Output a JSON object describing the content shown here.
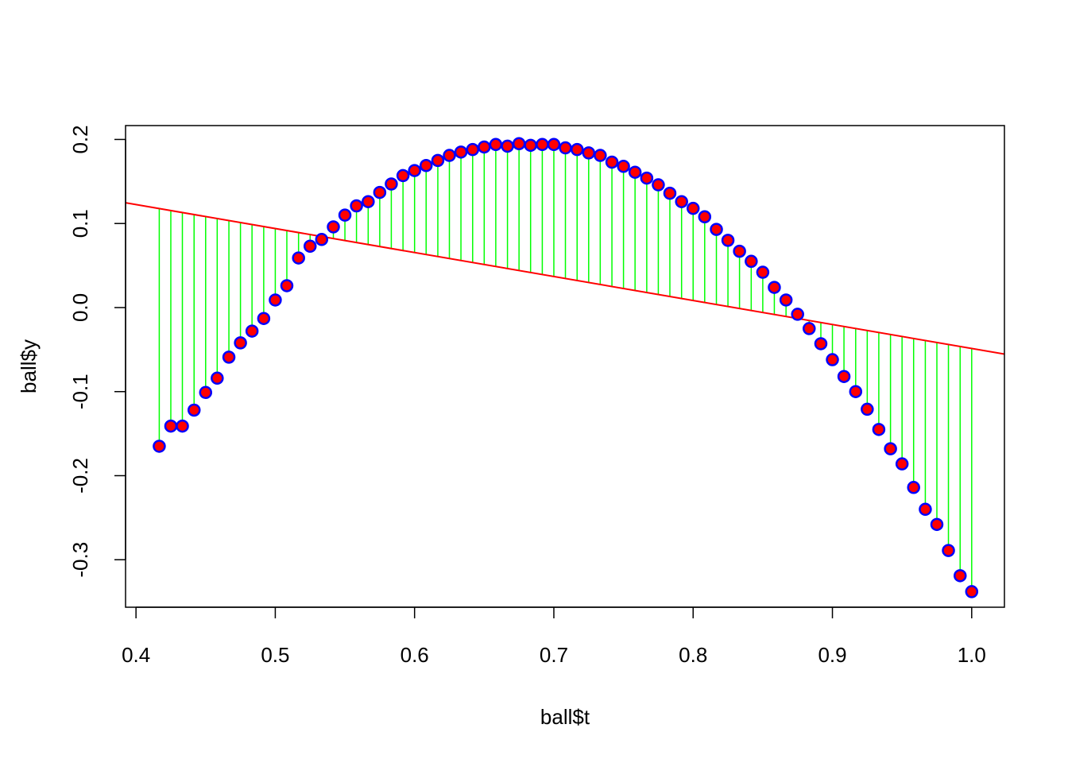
{
  "chart_data": {
    "type": "scatter",
    "title": "",
    "xlabel": "ball$t",
    "ylabel": "ball$y",
    "xlim": [
      0.3925,
      1.0235
    ],
    "ylim": [
      -0.3565,
      0.2165
    ],
    "xticks": [
      0.4,
      0.5,
      0.6,
      0.7,
      0.8,
      0.9,
      1.0
    ],
    "xtick_labels": [
      "0.4",
      "0.5",
      "0.6",
      "0.7",
      "0.8",
      "0.9",
      "1.0"
    ],
    "yticks": [
      0.2,
      0.1,
      0.0,
      -0.1,
      -0.2,
      -0.3
    ],
    "ytick_labels": [
      "0.2",
      "0.1",
      "0.0",
      "-0.1",
      "-0.2",
      "-0.3"
    ],
    "grid": false,
    "legend": "none",
    "points": {
      "x": [
        0.4167,
        0.425,
        0.4333,
        0.4417,
        0.45,
        0.4583,
        0.4667,
        0.475,
        0.4833,
        0.4917,
        0.5,
        0.5083,
        0.5167,
        0.525,
        0.5333,
        0.5417,
        0.55,
        0.5583,
        0.5667,
        0.575,
        0.5833,
        0.5917,
        0.6,
        0.6083,
        0.6167,
        0.625,
        0.6333,
        0.6417,
        0.65,
        0.6583,
        0.6667,
        0.675,
        0.6833,
        0.6917,
        0.7,
        0.7083,
        0.7167,
        0.725,
        0.7333,
        0.7417,
        0.75,
        0.7583,
        0.7667,
        0.775,
        0.7833,
        0.7917,
        0.8,
        0.8083,
        0.8167,
        0.825,
        0.8333,
        0.8417,
        0.85,
        0.8583,
        0.8667,
        0.875,
        0.8833,
        0.8917,
        0.9,
        0.9083,
        0.9167,
        0.925,
        0.9333,
        0.9417,
        0.95,
        0.9583,
        0.9667,
        0.975,
        0.9833,
        0.9917,
        1.0
      ],
      "y": [
        -0.165,
        -0.141,
        -0.141,
        -0.122,
        -0.101,
        -0.084,
        -0.059,
        -0.042,
        -0.028,
        -0.013,
        0.009,
        0.026,
        0.059,
        0.073,
        0.081,
        0.096,
        0.11,
        0.121,
        0.126,
        0.137,
        0.147,
        0.157,
        0.163,
        0.169,
        0.175,
        0.181,
        0.185,
        0.188,
        0.191,
        0.194,
        0.192,
        0.195,
        0.193,
        0.194,
        0.194,
        0.19,
        0.188,
        0.184,
        0.181,
        0.173,
        0.168,
        0.161,
        0.154,
        0.146,
        0.136,
        0.126,
        0.118,
        0.108,
        0.093,
        0.08,
        0.067,
        0.055,
        0.042,
        0.024,
        0.009,
        -0.008,
        -0.025,
        -0.043,
        -0.062,
        -0.082,
        -0.1,
        -0.121,
        -0.145,
        -0.168,
        -0.186,
        -0.214,
        -0.24,
        -0.258,
        -0.289,
        -0.319,
        -0.338
      ],
      "fill": "#ff0000",
      "stroke": "#0000ff"
    },
    "regression_line": {
      "intercept": 0.2367,
      "slope": -0.2854,
      "color": "#ff0000"
    },
    "residual_color": "#00ff00"
  }
}
